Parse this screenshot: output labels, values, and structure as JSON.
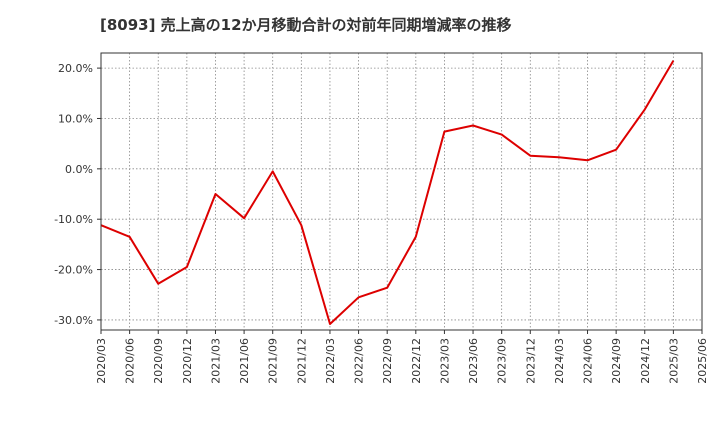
{
  "chart_data": {
    "type": "line",
    "title": "[8093]  売上高の12か月移動合計の対前年同期増減率の推移",
    "xlabel": "",
    "ylabel": "",
    "ylim": [
      -32,
      23
    ],
    "y_ticks": [
      20,
      10,
      0,
      -10,
      -20,
      -30
    ],
    "y_tick_labels": [
      "20.0%",
      "10.0%",
      "0.0%",
      "-10.0%",
      "-20.0%",
      "-30.0%"
    ],
    "x_ticks": [
      "2020/03",
      "2020/06",
      "2020/09",
      "2020/12",
      "2021/03",
      "2021/06",
      "2021/09",
      "2021/12",
      "2022/03",
      "2022/06",
      "2022/09",
      "2022/12",
      "2023/03",
      "2023/06",
      "2023/09",
      "2023/12",
      "2024/03",
      "2024/06",
      "2024/09",
      "2024/12",
      "2025/03",
      "2025/06"
    ],
    "grid": true,
    "series": [
      {
        "name": "増減率",
        "color": "#dd0000",
        "x": [
          "2020/03",
          "2020/06",
          "2020/09",
          "2020/12",
          "2021/03",
          "2021/06",
          "2021/09",
          "2021/12",
          "2022/03",
          "2022/06",
          "2022/09",
          "2022/12",
          "2023/03",
          "2023/06",
          "2023/09",
          "2023/12",
          "2024/03",
          "2024/06",
          "2024/09",
          "2024/12",
          "2025/03"
        ],
        "values": [
          -11.2,
          -13.5,
          -22.8,
          -19.5,
          -5.0,
          -9.8,
          -0.5,
          -11.2,
          -30.8,
          -25.5,
          -23.6,
          -13.5,
          7.4,
          8.6,
          6.8,
          2.6,
          2.3,
          1.7,
          3.8,
          11.8,
          21.5
        ]
      }
    ]
  }
}
